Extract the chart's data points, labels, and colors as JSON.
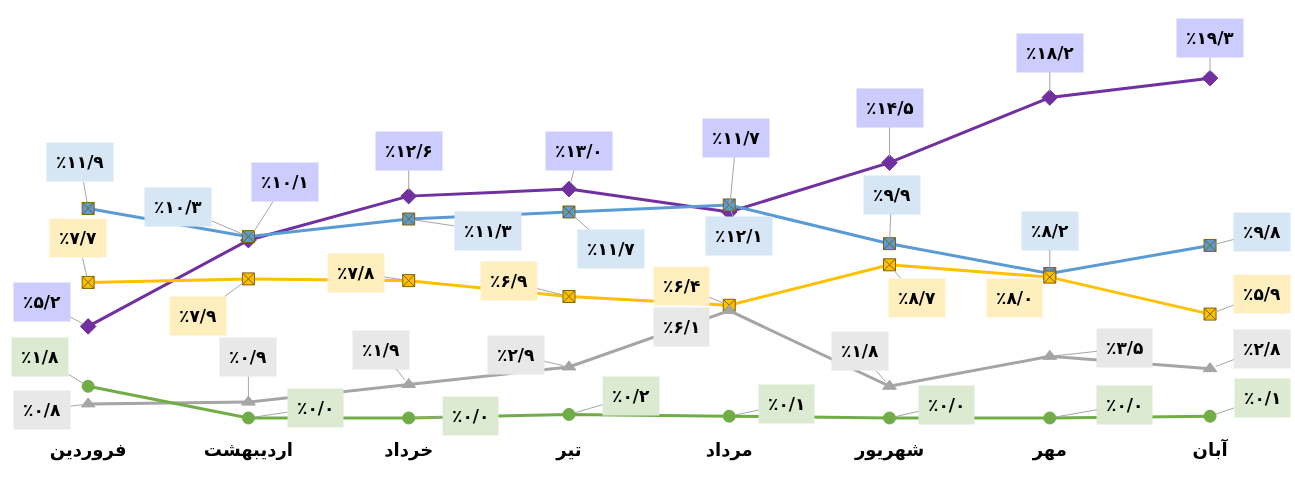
{
  "chart_data": {
    "type": "line",
    "categories": [
      "فروردین",
      "اردیبهشت",
      "خرداد",
      "تیر",
      "مرداد",
      "شهریور",
      "مهر",
      "آبان"
    ],
    "series": [
      {
        "color": "#7030a0",
        "marker": "diamond",
        "values": [
          5.2,
          10.1,
          12.6,
          13.0,
          11.7,
          14.5,
          18.2,
          19.3
        ],
        "value_labels": [
          "٪۵/۲",
          "٪۱۰/۱",
          "٪۱۲/۶",
          "٪۱۳/۰",
          "٪۱۱/۷",
          "٪۱۴/۵",
          "٪۱۸/۲",
          "٪۱۹/۳"
        ]
      },
      {
        "color": "#5b9bd5",
        "marker": "cross",
        "values": [
          11.9,
          10.3,
          11.3,
          11.7,
          12.1,
          9.9,
          8.2,
          9.8
        ],
        "value_labels": [
          "٪۱۱/۹",
          "٪۱۰/۳",
          "٪۱۱/۳",
          "٪۱۱/۷",
          "٪۱۲/۱",
          "٪۹/۹",
          "٪۸/۲",
          "٪۹/۸"
        ]
      },
      {
        "color": "#ffc000",
        "marker": "cross",
        "values": [
          7.7,
          7.9,
          7.8,
          6.9,
          6.4,
          8.7,
          8.0,
          5.9
        ],
        "value_labels": [
          "٪۷/۷",
          "٪۷/۹",
          "٪۷/۸",
          "٪۶/۹",
          "٪۶/۴",
          "٪۸/۷",
          "٪۸/۰",
          "٪۵/۹"
        ]
      },
      {
        "color": "#a5a5a5",
        "marker": "triangle",
        "values": [
          0.8,
          0.9,
          1.9,
          2.9,
          6.1,
          1.8,
          3.5,
          2.8
        ],
        "value_labels": [
          "٪۰/۸",
          "٪۰/۹",
          "٪۱/۹",
          "٪۲/۹",
          "٪۶/۱",
          "٪۱/۸",
          "٪۳/۵",
          "٪۲/۸"
        ]
      },
      {
        "color": "#70ad47",
        "marker": "circle",
        "values": [
          1.8,
          0.0,
          0.0,
          0.2,
          0.1,
          0.0,
          0.0,
          0.1
        ],
        "value_labels": [
          "٪۱/۸",
          "٪۰/۰",
          "٪۰/۰",
          "٪۰/۲",
          "٪۰/۱",
          "٪۰/۰",
          "٪۰/۰",
          "٪۰/۱"
        ]
      }
    ],
    "line_style": "solid"
  }
}
